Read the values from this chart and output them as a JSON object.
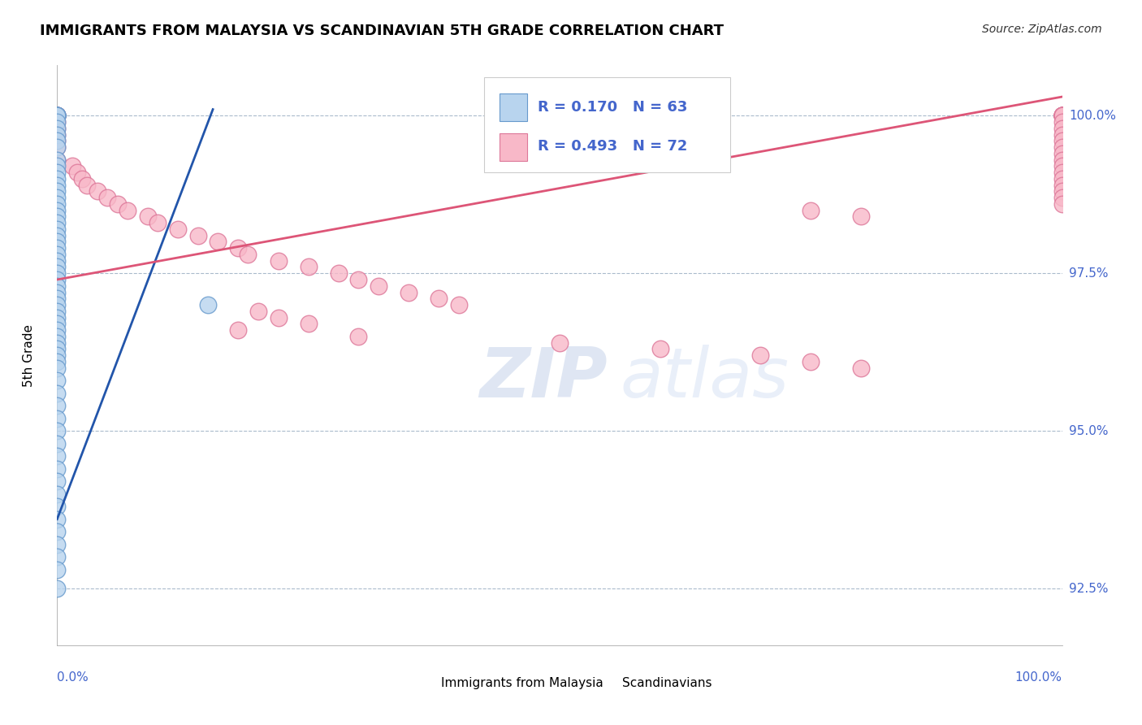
{
  "title": "IMMIGRANTS FROM MALAYSIA VS SCANDINAVIAN 5TH GRADE CORRELATION CHART",
  "source": "Source: ZipAtlas.com",
  "ylabel": "5th Grade",
  "legend1_label": "Immigrants from Malaysia",
  "legend2_label": "Scandinavians",
  "R1": 0.17,
  "N1": 63,
  "R2": 0.493,
  "N2": 72,
  "xlim": [
    0.0,
    1.0
  ],
  "ylim": [
    0.916,
    1.008
  ],
  "yticks": [
    0.925,
    0.95,
    0.975,
    1.0
  ],
  "ytick_labels": [
    "92.5%",
    "95.0%",
    "97.5%",
    "100.0%"
  ],
  "color_malaysia": "#b8d4ee",
  "color_scandinavian": "#f8b8c8",
  "edge_malaysia": "#6699cc",
  "edge_scandinavian": "#dd7799",
  "color_line_malaysia": "#2255aa",
  "color_line_scandinavian": "#dd5577",
  "malaysia_x": [
    0.0,
    0.0,
    0.0,
    0.0,
    0.0,
    0.0,
    0.0,
    0.0,
    0.0,
    0.0,
    0.0,
    0.0,
    0.0,
    0.0,
    0.0,
    0.0,
    0.0,
    0.0,
    0.0,
    0.0,
    0.0,
    0.0,
    0.0,
    0.0,
    0.0,
    0.0,
    0.0,
    0.0,
    0.0,
    0.0,
    0.0,
    0.0,
    0.0,
    0.0,
    0.0,
    0.0,
    0.0,
    0.0,
    0.0,
    0.0,
    0.0,
    0.0,
    0.0,
    0.0,
    0.0,
    0.0,
    0.0,
    0.0,
    0.0,
    0.0,
    0.0,
    0.0,
    0.0,
    0.0,
    0.0,
    0.0,
    0.0,
    0.0,
    0.0,
    0.0,
    0.0,
    0.0,
    0.15
  ],
  "malaysia_y": [
    1.0,
    1.0,
    1.0,
    1.0,
    1.0,
    1.0,
    0.999,
    0.998,
    0.997,
    0.996,
    0.995,
    0.993,
    0.992,
    0.991,
    0.99,
    0.989,
    0.988,
    0.987,
    0.986,
    0.985,
    0.984,
    0.983,
    0.982,
    0.981,
    0.98,
    0.979,
    0.978,
    0.977,
    0.976,
    0.975,
    0.974,
    0.973,
    0.972,
    0.971,
    0.97,
    0.969,
    0.968,
    0.967,
    0.966,
    0.965,
    0.964,
    0.963,
    0.962,
    0.961,
    0.96,
    0.958,
    0.956,
    0.954,
    0.952,
    0.95,
    0.948,
    0.946,
    0.944,
    0.942,
    0.94,
    0.938,
    0.936,
    0.934,
    0.932,
    0.93,
    0.928,
    0.925,
    0.97
  ],
  "scandinavian_x": [
    0.0,
    0.0,
    0.0,
    0.0,
    0.0,
    0.0,
    0.0,
    0.0,
    0.0,
    0.0,
    0.0,
    0.0,
    0.015,
    0.02,
    0.025,
    0.03,
    0.04,
    0.05,
    0.06,
    0.07,
    0.09,
    0.1,
    0.12,
    0.14,
    0.16,
    0.18,
    0.19,
    0.22,
    0.25,
    0.28,
    0.3,
    0.32,
    0.35,
    0.38,
    0.4,
    0.2,
    0.22,
    0.25,
    0.18,
    0.3,
    0.5,
    0.6,
    0.7,
    0.75,
    0.8,
    1.0,
    1.0,
    1.0,
    1.0,
    1.0,
    1.0,
    1.0,
    1.0,
    1.0,
    1.0,
    1.0,
    1.0,
    1.0,
    1.0,
    1.0,
    1.0,
    1.0,
    1.0,
    1.0,
    1.0,
    1.0,
    1.0,
    1.0,
    1.0,
    1.0,
    0.75,
    0.8
  ],
  "scandinavian_y": [
    1.0,
    1.0,
    1.0,
    1.0,
    1.0,
    1.0,
    0.999,
    0.998,
    0.997,
    0.996,
    0.995,
    0.993,
    0.992,
    0.991,
    0.99,
    0.989,
    0.988,
    0.987,
    0.986,
    0.985,
    0.984,
    0.983,
    0.982,
    0.981,
    0.98,
    0.979,
    0.978,
    0.977,
    0.976,
    0.975,
    0.974,
    0.973,
    0.972,
    0.971,
    0.97,
    0.969,
    0.968,
    0.967,
    0.966,
    0.965,
    0.964,
    0.963,
    0.962,
    0.961,
    0.96,
    1.0,
    1.0,
    1.0,
    1.0,
    1.0,
    1.0,
    1.0,
    1.0,
    1.0,
    1.0,
    1.0,
    0.999,
    0.998,
    0.997,
    0.996,
    0.995,
    0.994,
    0.993,
    0.992,
    0.991,
    0.99,
    0.989,
    0.988,
    0.987,
    0.986,
    0.985,
    0.984
  ],
  "malaysia_line_x0": 0.0,
  "malaysia_line_y0": 0.936,
  "malaysia_line_x1": 0.155,
  "malaysia_line_y1": 1.001,
  "scandinavian_line_x0": 0.0,
  "scandinavian_line_y0": 0.974,
  "scandinavian_line_x1": 1.0,
  "scandinavian_line_y1": 1.003
}
